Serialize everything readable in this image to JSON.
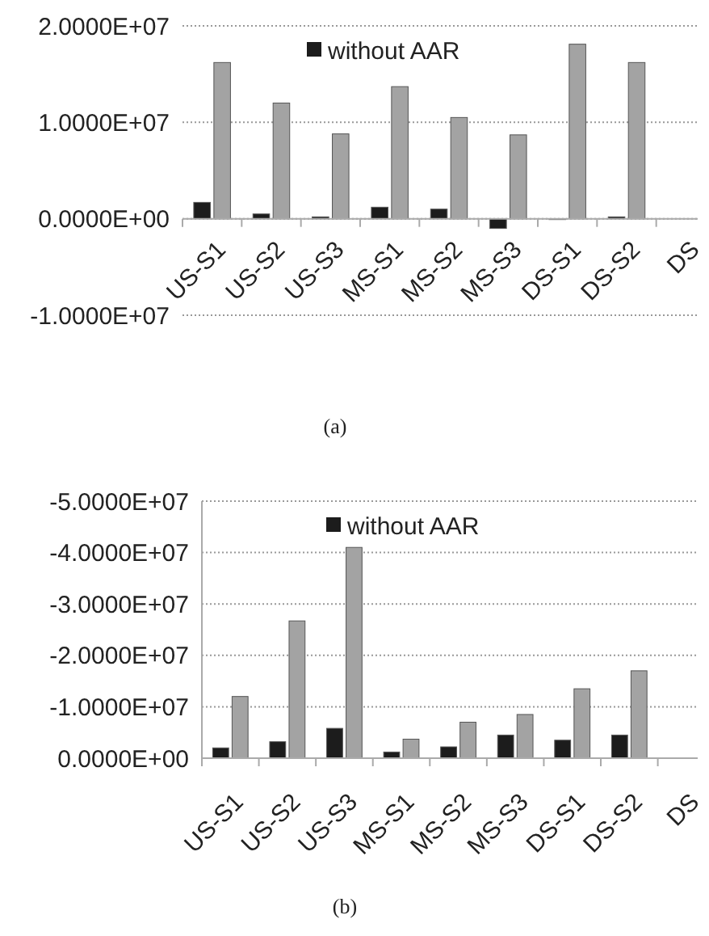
{
  "chart_data": [
    {
      "type": "bar",
      "categories": [
        "US-S1",
        "US-S2",
        "US-S3",
        "MS-S1",
        "MS-S2",
        "MS-S3",
        "DS-S1",
        "DS-S2",
        "DS"
      ],
      "series": [
        {
          "name": "without AAR",
          "color": "#1c1c1c",
          "values": [
            1700000,
            500000,
            200000,
            1200000,
            1000000,
            -1000000,
            0,
            200000,
            null
          ]
        },
        {
          "color": "#a3a3a3",
          "values": [
            16200000,
            12000000,
            8800000,
            13700000,
            10500000,
            8700000,
            18100000,
            16200000,
            null
          ]
        }
      ],
      "ylim": [
        -10000000,
        20000000
      ],
      "yticks": [
        {
          "value": -10000000,
          "label": "-1.0000E+07"
        },
        {
          "value": 0,
          "label": "0.0000E+00"
        },
        {
          "value": 10000000,
          "label": "1.0000E+07"
        },
        {
          "value": 20000000,
          "label": "2.0000E+07"
        }
      ],
      "grid": "y",
      "legend": "top",
      "annotations": [
        "(a)"
      ]
    },
    {
      "type": "bar",
      "categories": [
        "US-S1",
        "US-S2",
        "US-S3",
        "MS-S1",
        "MS-S2",
        "MS-S3",
        "DS-S1",
        "DS-S2",
        "DS"
      ],
      "series": [
        {
          "name": "without AAR",
          "color": "#1c1c1c",
          "values": [
            -2000000,
            -3200000,
            -5800000,
            -1200000,
            -2200000,
            -4500000,
            -3500000,
            -4500000,
            null
          ]
        },
        {
          "color": "#a3a3a3",
          "values": [
            -12000000,
            -26700000,
            -41000000,
            -3700000,
            -7000000,
            -8500000,
            -13500000,
            -17000000,
            null
          ]
        }
      ],
      "ylim": [
        0,
        -50000000
      ],
      "yticks": [
        {
          "value": 0,
          "label": "0.0000E+00"
        },
        {
          "value": -10000000,
          "label": "-1.0000E+07"
        },
        {
          "value": -20000000,
          "label": "-2.0000E+07"
        },
        {
          "value": -30000000,
          "label": "-3.0000E+07"
        },
        {
          "value": -40000000,
          "label": "-4.0000E+07"
        },
        {
          "value": -50000000,
          "label": "-5.0000E+07"
        }
      ],
      "grid": "y",
      "legend": "top",
      "annotations": [
        "(b)"
      ]
    }
  ]
}
